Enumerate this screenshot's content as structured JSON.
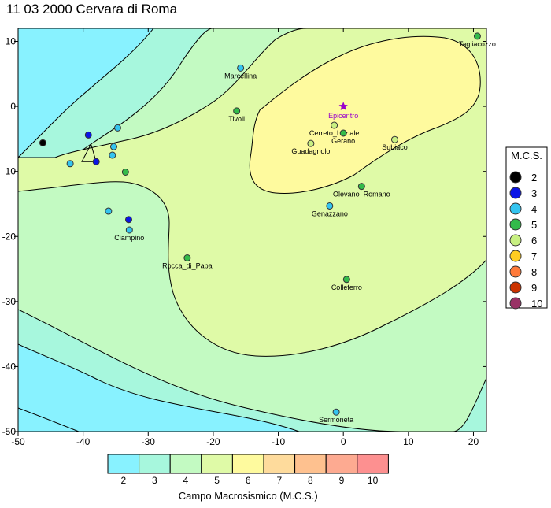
{
  "title": "11 03 2000 Cervara di Roma",
  "chart_data": {
    "type": "scatter",
    "subtype": "contour map with intensity points",
    "xlim": [
      -50,
      22
    ],
    "ylim": [
      -50,
      12
    ],
    "xticks": [
      -50,
      -40,
      -30,
      -20,
      -10,
      0,
      10,
      20
    ],
    "yticks": [
      10,
      0,
      -10,
      -20,
      -30,
      -40,
      -50
    ],
    "epicentre": {
      "label": "Epicentro",
      "x": 0,
      "y": 0,
      "color": "#9900cc"
    },
    "mcs_legend_title": "M.C.S.",
    "mcs_levels": [
      {
        "label": "2",
        "color": "#000000"
      },
      {
        "label": "3",
        "color": "#0a14e6"
      },
      {
        "label": "4",
        "color": "#33c4f0"
      },
      {
        "label": "5",
        "color": "#33bb4a"
      },
      {
        "label": "6",
        "color": "#c8f082"
      },
      {
        "label": "7",
        "color": "#ffcc22"
      },
      {
        "label": "8",
        "color": "#ff7a3a"
      },
      {
        "label": "9",
        "color": "#cc3300"
      },
      {
        "label": "10",
        "color": "#993366"
      }
    ],
    "points": [
      {
        "name": "Tagliacozzo",
        "x": 20.6,
        "y": 10.8,
        "mcs": 5
      },
      {
        "name": "Marcellina",
        "x": -15.8,
        "y": 5.9,
        "mcs": 4
      },
      {
        "name": "Tivoli",
        "x": -16.4,
        "y": -0.7,
        "mcs": 5
      },
      {
        "name": "Cerreto_Laziale",
        "x": -1.4,
        "y": -2.9,
        "mcs": 6
      },
      {
        "name": "Gerano",
        "x": 0,
        "y": -4.1,
        "mcs": 5
      },
      {
        "name": "Guadagnolo",
        "x": -5.0,
        "y": -5.7,
        "mcs": 6
      },
      {
        "name": "Subiaco",
        "x": 7.9,
        "y": -5.1,
        "mcs": 6
      },
      {
        "name": "Olevano_Romano",
        "x": 2.8,
        "y": -12.3,
        "mcs": 5
      },
      {
        "name": "Genazzano",
        "x": -2.1,
        "y": -15.3,
        "mcs": 4
      },
      {
        "name": "Ciampino",
        "x": -32.9,
        "y": -19.0,
        "mcs": 4
      },
      {
        "name": "Rocca_di_Papa",
        "x": -24.0,
        "y": -23.3,
        "mcs": 5
      },
      {
        "name": "Colleferro",
        "x": 0.5,
        "y": -26.6,
        "mcs": 5
      },
      {
        "name": "Sermoneta",
        "x": -1.1,
        "y": -47.0,
        "mcs": 4
      },
      {
        "name": "",
        "x": -46.2,
        "y": -5.6,
        "mcs": 2
      },
      {
        "name": "",
        "x": -39.2,
        "y": -4.4,
        "mcs": 3
      },
      {
        "name": "",
        "x": -38.0,
        "y": -8.5,
        "mcs": 3
      },
      {
        "name": "",
        "x": -33.0,
        "y": -17.4,
        "mcs": 3
      },
      {
        "name": "",
        "x": -34.7,
        "y": -3.3,
        "mcs": 4
      },
      {
        "name": "",
        "x": -35.3,
        "y": -6.2,
        "mcs": 4
      },
      {
        "name": "",
        "x": -35.5,
        "y": -7.5,
        "mcs": 4
      },
      {
        "name": "",
        "x": -42.0,
        "y": -8.8,
        "mcs": 4
      },
      {
        "name": "",
        "x": -36.1,
        "y": -16.1,
        "mcs": 4
      },
      {
        "name": "",
        "x": -33.5,
        "y": -10.1,
        "mcs": 5
      }
    ],
    "colorbar": {
      "labels": [
        "2",
        "3",
        "4",
        "5",
        "6",
        "7",
        "8",
        "9",
        "10"
      ],
      "colors": [
        "#88f2ff",
        "#a7f7dd",
        "#c3fac2",
        "#dffaa7",
        "#fefa9e",
        "#fedb9c",
        "#fec18f",
        "#fdaa91",
        "#fd9090"
      ],
      "caption": "Campo Macrosismico (M.C.S.)"
    }
  }
}
